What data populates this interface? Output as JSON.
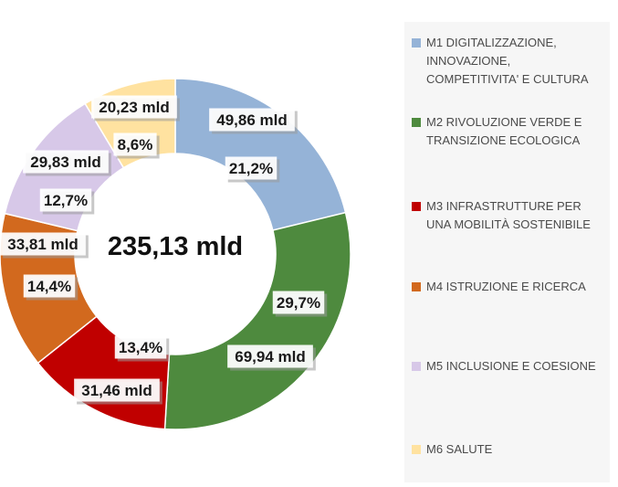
{
  "chart_data": {
    "type": "donut",
    "center_label": "235,13 mld",
    "total": 235.13,
    "legend_position": "right",
    "slices": [
      {
        "name": "M1 DIGITALIZZAZIONE, INNOVAZIONE, COMPETITIVITA' E CULTURA",
        "value": 49.86,
        "value_label": "49,86 mld",
        "percent_label": "21,2%",
        "color": "#95B3D7"
      },
      {
        "name": "M2 RIVOLUZIONE VERDE E TRANSIZIONE ECOLOGICA",
        "value": 69.94,
        "value_label": "69,94 mld",
        "percent_label": "29,7%",
        "color": "#4E8A3E"
      },
      {
        "name": "M3 INFRASTRUTTURE PER UNA MOBILITÀ SOSTENIBILE",
        "value": 31.46,
        "value_label": "31,46 mld",
        "percent_label": "13,4%",
        "color": "#C00000"
      },
      {
        "name": "M4 ISTRUZIONE E RICERCA",
        "value": 33.81,
        "value_label": "33,81 mld",
        "percent_label": "14,4%",
        "color": "#D2691E"
      },
      {
        "name": "M5 INCLUSIONE E COESIONE",
        "value": 29.83,
        "value_label": "29,83 mld",
        "percent_label": "12,7%",
        "color": "#D7C8E8"
      },
      {
        "name": "M6 SALUTE",
        "value": 20.23,
        "value_label": "20,23 mld",
        "percent_label": "8,6%",
        "color": "#FFE2A0"
      }
    ]
  }
}
